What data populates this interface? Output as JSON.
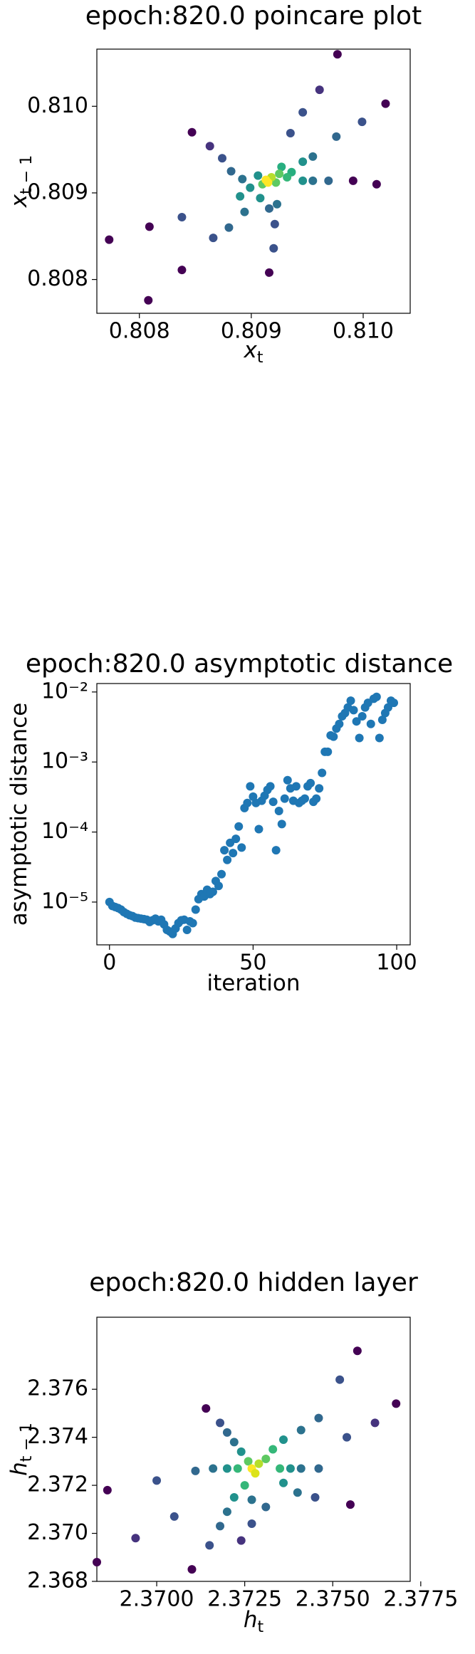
{
  "chart_data": [
    {
      "type": "scatter",
      "title": "epoch:820.0 poincare plot",
      "xlabel": {
        "text": "x",
        "sub": "t"
      },
      "ylabel": {
        "text": "x",
        "sub": "t − 1"
      },
      "xlim": [
        0.80762,
        0.81042
      ],
      "ylim": [
        0.80761,
        0.81066
      ],
      "xticks": [
        0.808,
        0.809,
        {
          "value": 0.81,
          "label": "0.810"
        }
      ],
      "yticks": [
        0.808,
        0.809,
        {
          "value": 0.81,
          "label": "0.810"
        }
      ],
      "x": [
        0.80773,
        0.80808,
        0.80809,
        0.80838,
        0.80838,
        0.80847,
        0.80863,
        0.80874,
        0.80882,
        0.80892,
        0.80899,
        0.80906,
        0.80916,
        0.8092,
        0.80916,
        0.80921,
        0.80923,
        0.80927,
        0.80935,
        0.80946,
        0.80961,
        0.80977,
        0.8102,
        0.80999,
        0.80976,
        0.80955,
        0.80946,
        0.80936,
        0.80991,
        0.81012,
        0.80969,
        0.80955,
        0.80946,
        0.80908,
        0.80894,
        0.8088,
        0.80866,
        0.8089,
        0.80922,
        0.80932,
        0.80925,
        0.8091,
        0.80918,
        0.80913,
        0.80915
      ],
      "y": [
        0.80846,
        0.80776,
        0.80861,
        0.80811,
        0.80872,
        0.8097,
        0.80954,
        0.8094,
        0.80925,
        0.80916,
        0.80906,
        0.8092,
        0.80882,
        0.80836,
        0.80808,
        0.80864,
        0.80887,
        0.8093,
        0.80969,
        0.80993,
        0.81019,
        0.8106,
        0.81003,
        0.80982,
        0.80965,
        0.80942,
        0.80936,
        0.80924,
        0.80914,
        0.8091,
        0.80914,
        0.80914,
        0.80914,
        0.80894,
        0.80878,
        0.8086,
        0.80848,
        0.80896,
        0.80912,
        0.80918,
        0.80922,
        0.8091,
        0.80918,
        0.80915,
        0.80912
      ],
      "colors": [
        "#440154",
        "#440154",
        "#440154",
        "#440154",
        "#3b528b",
        "#440154",
        "#46337e",
        "#3b528b",
        "#31688e",
        "#2c728e",
        "#21918c",
        "#21918c",
        "#31688e",
        "#3b528b",
        "#440154",
        "#3b528b",
        "#2c728e",
        "#28ae80",
        "#3b528b",
        "#3b528b",
        "#46337e",
        "#440154",
        "#440154",
        "#3b528b",
        "#31688e",
        "#2c728e",
        "#21918c",
        "#28ae80",
        "#440154",
        "#440154",
        "#31688e",
        "#2c728e",
        "#21918c",
        "#21918c",
        "#2c728e",
        "#31688e",
        "#3b528b",
        "#21918c",
        "#5ec962",
        "#35b779",
        "#5ec962",
        "#5ec962",
        "#b5de2b",
        "#fde725",
        "#fde725"
      ]
    },
    {
      "type": "scatter",
      "title": "epoch:820.0 asymptotic distance",
      "xlabel": {
        "text": "iteration"
      },
      "ylabel": {
        "text": "asymptotic distance"
      },
      "yscale": "log",
      "color": "#1f77b4",
      "xlim": [
        -4.4,
        104.7
      ],
      "ylim": [
        2.45e-06,
        0.0132
      ],
      "xticks": [
        0,
        50,
        100
      ],
      "yticks": [
        {
          "value": 1e-05,
          "label": "10⁻⁵"
        },
        {
          "value": 0.0001,
          "label": "10⁻⁴"
        },
        {
          "value": 0.001,
          "label": "10⁻³"
        },
        {
          "value": 0.01,
          "label": "10⁻²"
        }
      ],
      "x": [
        0,
        1,
        2,
        3,
        4,
        5,
        6,
        7,
        8,
        9,
        10,
        11,
        12,
        13,
        14,
        15,
        16,
        17,
        18,
        19,
        20,
        21,
        22,
        23,
        24,
        25,
        26,
        27,
        28,
        29,
        30,
        31,
        32,
        33,
        34,
        35,
        36,
        37,
        38,
        39,
        40,
        41,
        42,
        43,
        44,
        45,
        46,
        47,
        48,
        49,
        50,
        51,
        52,
        53,
        54,
        55,
        56,
        57,
        58,
        59,
        60,
        61,
        62,
        63,
        64,
        65,
        66,
        67,
        68,
        69,
        70,
        71,
        72,
        73,
        74,
        75,
        76,
        77,
        78,
        79,
        80,
        81,
        82,
        83,
        84,
        85,
        86,
        87,
        88,
        89,
        90,
        91,
        92,
        93,
        94,
        95,
        96,
        97,
        98,
        99
      ],
      "y": [
        1e-05,
        8.8e-06,
        8.5e-06,
        8.2e-06,
        7.8e-06,
        7.2e-06,
        6.8e-06,
        6.5e-06,
        6.3e-06,
        6e-06,
        5.9e-06,
        5.8e-06,
        5.7e-06,
        5.6e-06,
        5.2e-06,
        5.5e-06,
        5.8e-06,
        5.3e-06,
        5.6e-06,
        4.8e-06,
        4e-06,
        3.8e-06,
        3.5e-06,
        4.2e-06,
        5e-06,
        5.5e-06,
        5.6e-06,
        4e-06,
        5.3e-06,
        5e-06,
        7.8e-06,
        1.1e-05,
        1.3e-05,
        1.2e-05,
        1.5e-05,
        1.3e-05,
        1.4e-05,
        2e-05,
        1.7e-05,
        2.5e-05,
        5.5e-05,
        4e-05,
        7e-05,
        5e-05,
        8e-05,
        0.00012,
        6e-05,
        0.00022,
        0.00026,
        0.00045,
        0.00032,
        0.00026,
        0.00011,
        0.00028,
        0.00033,
        0.0004,
        0.00045,
        0.00027,
        5.5e-05,
        0.0002,
        0.00013,
        0.0003,
        0.00055,
        0.00042,
        0.00028,
        0.00045,
        0.00026,
        0.00028,
        0.0003,
        0.00045,
        0.0005,
        0.00027,
        0.0003,
        0.00042,
        0.0007,
        0.0014,
        0.0014,
        0.0024,
        0.0023,
        0.003,
        0.0035,
        0.0045,
        0.005,
        0.006,
        0.0075,
        0.0055,
        0.0038,
        0.0022,
        0.0045,
        0.006,
        0.007,
        0.0035,
        0.008,
        0.0085,
        0.0022,
        0.004,
        0.005,
        0.006,
        0.0075,
        0.007
      ]
    },
    {
      "type": "scatter",
      "title": "epoch:820.0 hidden layer",
      "xlabel": {
        "text": "h",
        "sub": "t"
      },
      "ylabel": {
        "text": "h",
        "sub": "t − 1"
      },
      "xlim": [
        2.3683,
        2.3772
      ],
      "ylim": [
        2.368,
        2.379
      ],
      "xticks": [
        {
          "value": 2.37,
          "label": "2.3700"
        },
        2.3725,
        {
          "value": 2.375,
          "label": "2.3750"
        },
        2.3775
      ],
      "yticks": [
        2.368,
        {
          "value": 2.37,
          "label": "2.370"
        },
        2.372,
        2.374,
        2.376
      ],
      "x": [
        2.3683,
        2.3686,
        2.3694,
        2.37,
        2.3705,
        2.371,
        2.3711,
        2.3714,
        2.3715,
        2.3718,
        2.3718,
        2.372,
        2.372,
        2.3722,
        2.3722,
        2.3724,
        2.3716,
        2.372,
        2.3723,
        2.3725,
        2.3726,
        2.3727,
        2.3728,
        2.3729,
        2.3731,
        2.3733,
        2.3735,
        2.3736,
        2.3738,
        2.3741,
        2.3741,
        2.3746,
        2.3746,
        2.3736,
        2.374,
        2.3745,
        2.3755,
        2.3752,
        2.3754,
        2.3762,
        2.3757,
        2.3768,
        2.3731,
        2.3727,
        2.3727,
        2.3724
      ],
      "y": [
        2.3688,
        2.3718,
        2.3698,
        2.3722,
        2.3707,
        2.3685,
        2.3726,
        2.3752,
        2.3695,
        2.3746,
        2.3703,
        2.3742,
        2.3709,
        2.3738,
        2.3715,
        2.3734,
        2.3727,
        2.3727,
        2.3727,
        2.372,
        2.373,
        2.3727,
        2.3725,
        2.3729,
        2.3731,
        2.3735,
        2.3727,
        2.3739,
        2.3727,
        2.3743,
        2.3727,
        2.3748,
        2.3727,
        2.3721,
        2.3717,
        2.3715,
        2.3712,
        2.3764,
        2.374,
        2.3746,
        2.3776,
        2.3754,
        2.3711,
        2.3714,
        2.3704,
        2.3697
      ],
      "colors": [
        "#440154",
        "#440154",
        "#46337e",
        "#3b528b",
        "#3b528b",
        "#440154",
        "#31688e",
        "#440154",
        "#3b528b",
        "#3b528b",
        "#31688e",
        "#31688e",
        "#2c728e",
        "#2c728e",
        "#21918c",
        "#21918c",
        "#2c728e",
        "#21918c",
        "#35b779",
        "#35b779",
        "#5ec962",
        "#fde725",
        "#dce319",
        "#b5de2b",
        "#5ec962",
        "#35b779",
        "#35b779",
        "#21918c",
        "#21918c",
        "#2c728e",
        "#2c728e",
        "#31688e",
        "#31688e",
        "#21918c",
        "#2c728e",
        "#3b528b",
        "#440154",
        "#3b528b",
        "#3b528b",
        "#46337e",
        "#440154",
        "#440154",
        "#31688e",
        "#2c728e",
        "#3b528b",
        "#46337e"
      ]
    }
  ]
}
